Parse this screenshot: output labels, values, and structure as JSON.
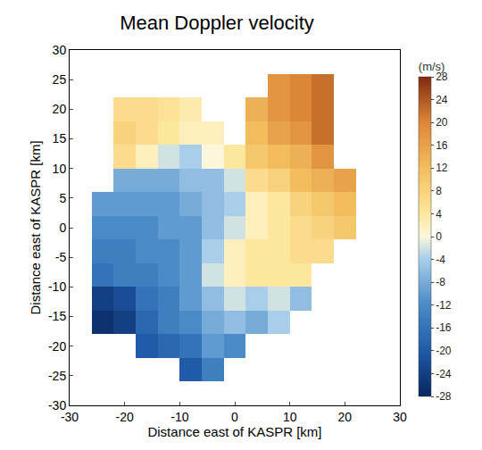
{
  "chart_data": {
    "type": "heatmap",
    "title": "Mean Doppler velocity",
    "x_label": "Distance east of KASPR [km]",
    "y_label": "Distance east of KASPR [km]",
    "colorbar_label": "(m/s)",
    "x": [
      -28,
      -24,
      -20,
      -16,
      -12,
      -8,
      -4,
      0,
      4,
      8,
      12,
      16,
      20,
      24,
      28
    ],
    "y": [
      -28,
      -24,
      -20,
      -16,
      -12,
      -8,
      -4,
      0,
      4,
      8,
      12,
      16,
      20,
      24,
      28
    ],
    "z": [
      [
        null,
        null,
        null,
        null,
        null,
        null,
        null,
        null,
        null,
        null,
        null,
        null,
        null,
        null,
        null
      ],
      [
        null,
        null,
        null,
        null,
        null,
        -20,
        -14,
        null,
        null,
        null,
        null,
        null,
        null,
        null,
        null
      ],
      [
        null,
        null,
        null,
        -20,
        -18,
        -16,
        -10,
        -12,
        null,
        null,
        null,
        null,
        null,
        null,
        null
      ],
      [
        null,
        -26,
        -24,
        -18,
        -14,
        -12,
        -8,
        -6,
        -8,
        -4,
        null,
        null,
        null,
        null,
        null
      ],
      [
        null,
        -24,
        -22,
        -16,
        -14,
        -10,
        -6,
        -2,
        -4,
        -2,
        -6,
        null,
        null,
        null,
        null
      ],
      [
        null,
        -16,
        -14,
        -14,
        -12,
        -10,
        -2,
        2,
        4,
        4,
        4,
        null,
        null,
        null,
        null
      ],
      [
        null,
        -14,
        -14,
        -12,
        -12,
        -10,
        -4,
        2,
        4,
        4,
        6,
        6,
        null,
        null,
        null
      ],
      [
        null,
        -12,
        -12,
        -12,
        -10,
        -10,
        -6,
        -2,
        2,
        4,
        6,
        8,
        10,
        null,
        null
      ],
      [
        null,
        -10,
        -10,
        -10,
        -10,
        -8,
        -6,
        -4,
        2,
        4,
        8,
        10,
        12,
        null,
        null
      ],
      [
        null,
        null,
        -8,
        -8,
        -8,
        -6,
        -6,
        -2,
        6,
        8,
        12,
        14,
        16,
        null,
        null
      ],
      [
        null,
        null,
        6,
        2,
        -2,
        -4,
        0,
        4,
        10,
        12,
        14,
        18,
        null,
        null,
        null
      ],
      [
        null,
        null,
        8,
        6,
        4,
        2,
        2,
        null,
        12,
        16,
        18,
        22,
        null,
        null,
        null
      ],
      [
        null,
        null,
        6,
        6,
        5,
        3,
        null,
        null,
        14,
        18,
        20,
        22,
        null,
        null,
        null
      ],
      [
        null,
        null,
        null,
        null,
        null,
        null,
        null,
        null,
        null,
        18,
        20,
        22,
        null,
        null,
        null
      ],
      [
        null,
        null,
        null,
        null,
        null,
        null,
        null,
        null,
        null,
        null,
        null,
        null,
        null,
        null,
        null
      ]
    ],
    "xlim": [
      -30,
      30
    ],
    "ylim": [
      -30,
      30
    ],
    "xticks": [
      -30,
      -20,
      -10,
      0,
      10,
      20,
      30
    ],
    "yticks": [
      -30,
      -25,
      -20,
      -15,
      -10,
      -5,
      0,
      5,
      10,
      15,
      20,
      25,
      30
    ],
    "zlim": [
      -28,
      28
    ],
    "zticks": [
      28,
      24,
      20,
      16,
      12,
      8,
      4,
      0,
      -4,
      -8,
      -12,
      -16,
      -20,
      -24,
      -28
    ]
  }
}
